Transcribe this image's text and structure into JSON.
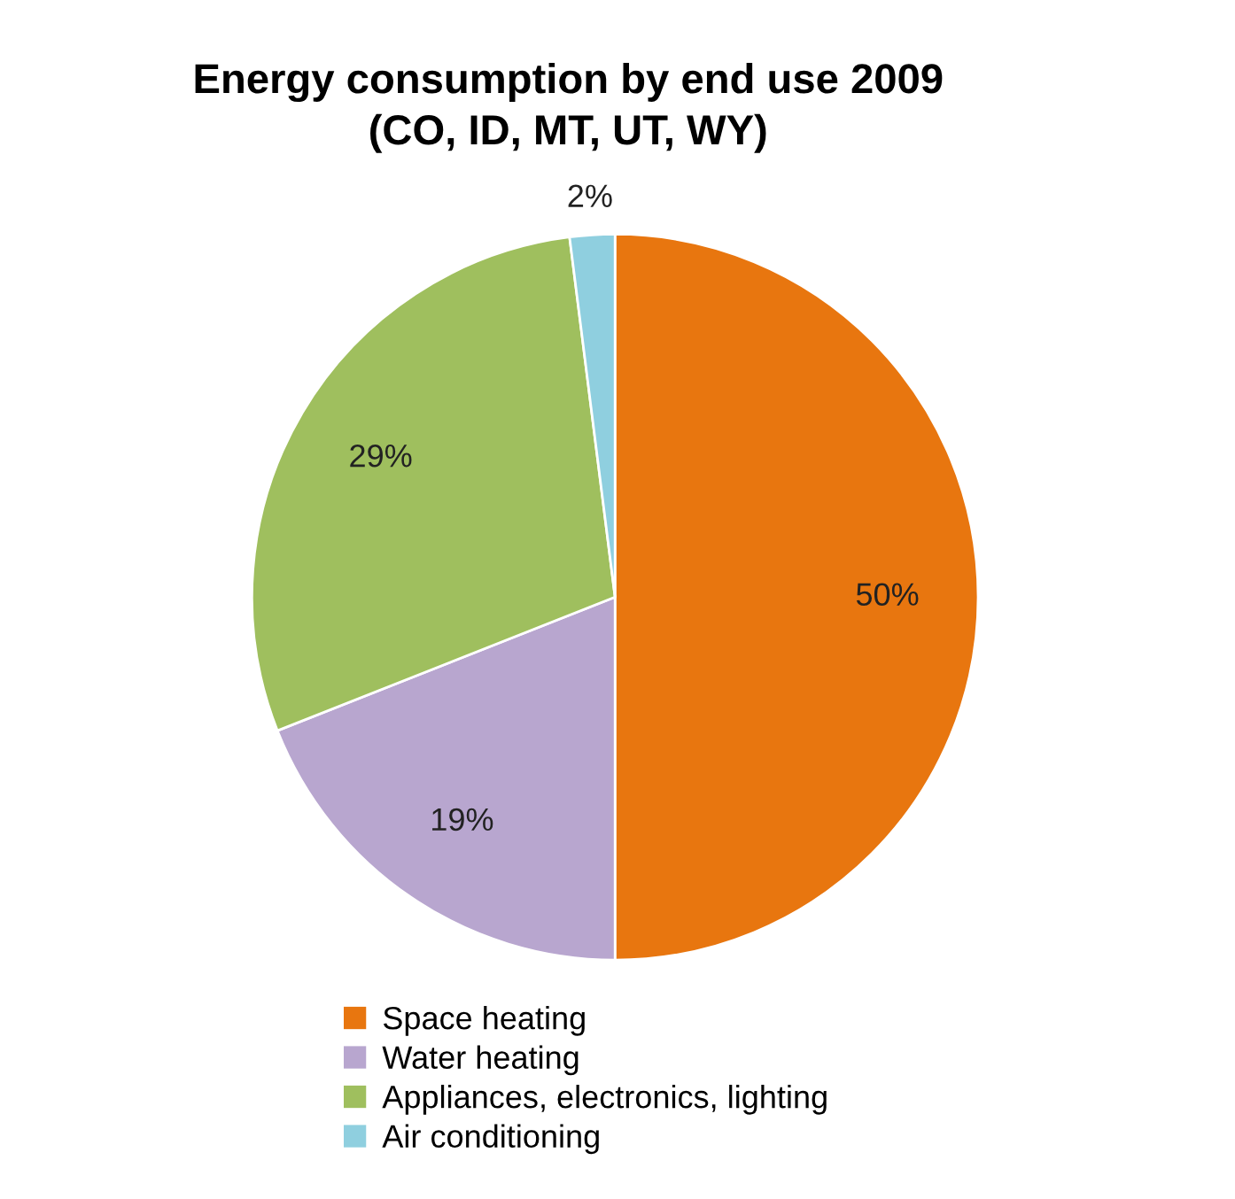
{
  "chart_data": {
    "type": "pie",
    "title": "Energy consumption by end use 2009\n(CO, ID, MT, UT, WY)",
    "categories": [
      "Space heating",
      "Water heating",
      "Appliances, electronics, lighting",
      "Air conditioning"
    ],
    "values": [
      50,
      19,
      29,
      2
    ],
    "colors": [
      "#e8760f",
      "#b8a6cf",
      "#9fbf5e",
      "#8fcfdf"
    ],
    "value_labels": [
      "50%",
      "19%",
      "29%",
      "2%"
    ],
    "legend": "bottom"
  }
}
